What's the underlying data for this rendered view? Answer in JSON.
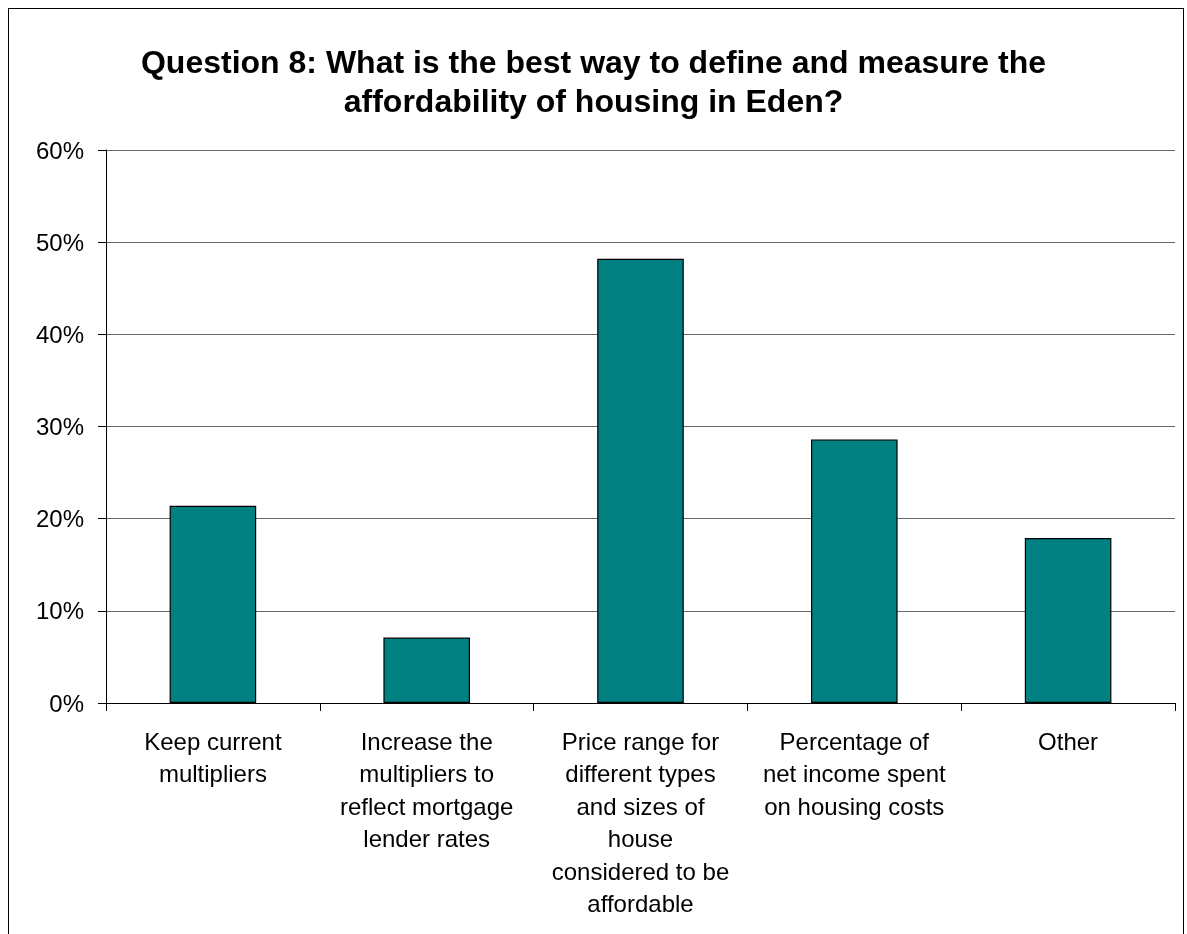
{
  "chart_data": {
    "type": "bar",
    "title": "Question 8: What is the best way to define and measure the affordability of housing in Eden?",
    "categories": [
      "Keep current multipliers",
      "Increase the multipliers to reflect mortgage lender rates",
      "Price range for different types and sizes of house considered to be affordable",
      "Percentage of net income spent on housing costs",
      "Other"
    ],
    "values": [
      21.4,
      7.1,
      48.2,
      28.6,
      17.9
    ],
    "color": "#008080",
    "ylim": [
      0,
      60
    ],
    "yticks": [
      {
        "value": 0,
        "label": "0%"
      },
      {
        "value": 10,
        "label": "10%"
      },
      {
        "value": 20,
        "label": "20%"
      },
      {
        "value": 30,
        "label": "30%"
      },
      {
        "value": 40,
        "label": "40%"
      },
      {
        "value": 50,
        "label": "50%"
      },
      {
        "value": 60,
        "label": "60%"
      }
    ],
    "grid": "y"
  }
}
